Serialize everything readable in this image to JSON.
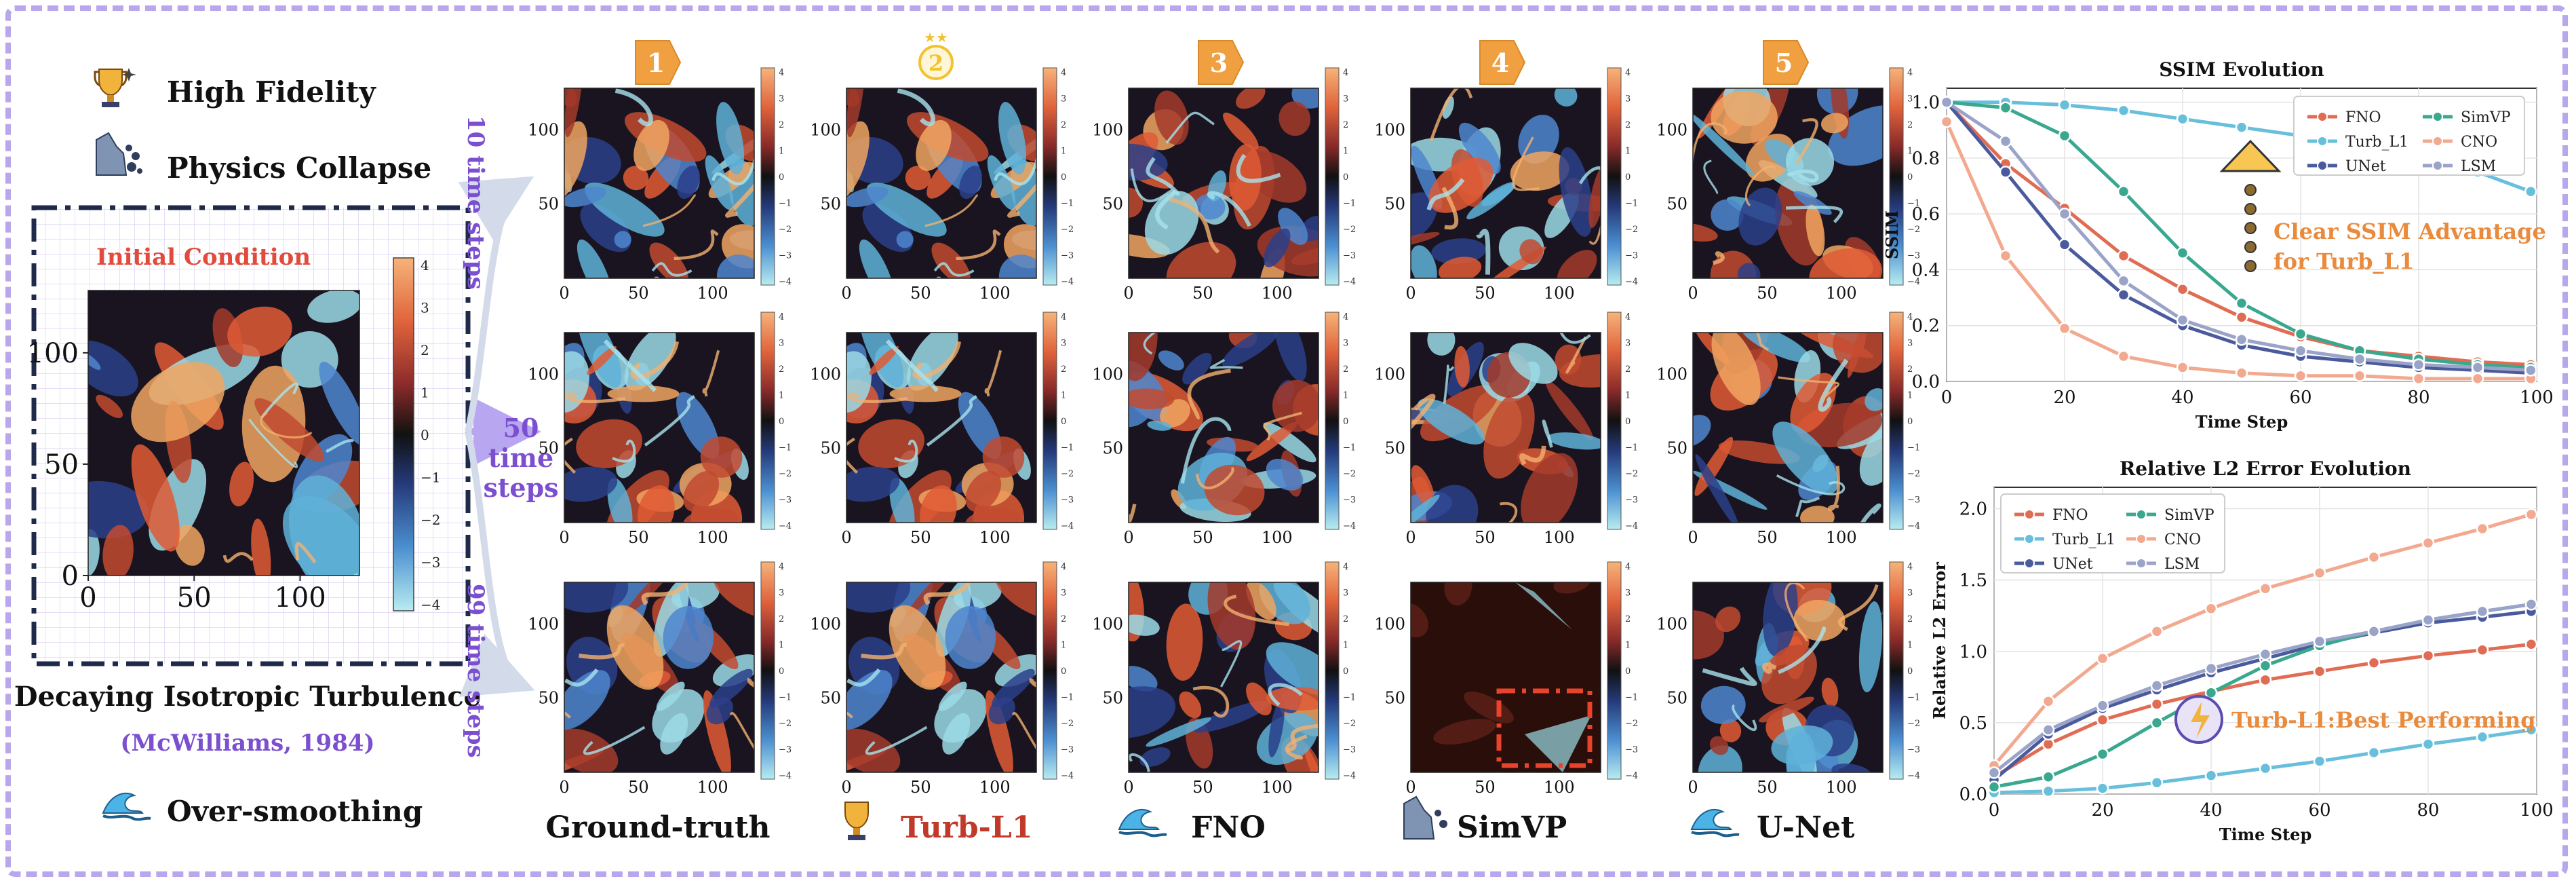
{
  "legend_left": {
    "high_fidelity": "High Fidelity",
    "physics_collapse": "Physics Collapse",
    "over_smoothing": "Over-smoothing",
    "icons": {
      "trophy": "trophy-icon",
      "rockslide": "rockslide-icon",
      "wave": "wave-icon"
    }
  },
  "initial_condition": {
    "title": "Initial Condition",
    "x_ticks": [
      "0",
      "50",
      "100"
    ],
    "y_ticks": [
      "0",
      "50",
      "100"
    ],
    "colorbar_ticks": [
      "4",
      "3",
      "2",
      "1",
      "0",
      "−1",
      "−2",
      "−3",
      "−4"
    ],
    "caption": "Decaying Isotropic Turbulence",
    "citation": "(McWilliams, 1984)"
  },
  "time_labels": {
    "t10": "10 time steps",
    "t50_line1": "50",
    "t50_line2": "time",
    "t50_line3": "steps",
    "t99": "99 time steps"
  },
  "grid": {
    "ranks": [
      "1",
      "2",
      "3",
      "4",
      "5"
    ],
    "columns": [
      "Ground-truth",
      "Turb-L1",
      "FNO",
      "SimVP",
      "U-Net"
    ],
    "x_ticks": [
      "0",
      "50",
      "100"
    ],
    "y_ticks": [
      "0",
      "50",
      "100"
    ],
    "colorbar_ticks": [
      "4",
      "3",
      "2",
      "1",
      "0",
      "−1",
      "−2",
      "−3",
      "−4"
    ]
  },
  "colors": {
    "accent_purple": "#7b4fd0",
    "rank_orange": "#f0a040",
    "turb_red": "#c0392b",
    "frame_dash": "#b9a7ee",
    "annotation_orange": "#e98a3c"
  },
  "ssim_chart": {
    "title": "SSIM Evolution",
    "annotation_line1": "Clear SSIM Advantage",
    "annotation_line2": "for Turb_L1"
  },
  "l2_chart": {
    "title": "Relative L2 Error Evolution",
    "annotation": "Turb-L1:Best Performing"
  },
  "chart_data": [
    {
      "type": "line",
      "title": "SSIM Evolution",
      "xlabel": "Time Step",
      "ylabel": "SSIM",
      "xlim": [
        0,
        100
      ],
      "ylim": [
        0,
        1.05
      ],
      "x_ticks": [
        0,
        20,
        40,
        60,
        80,
        100
      ],
      "y_ticks": [
        0.0,
        0.2,
        0.4,
        0.6,
        0.8,
        1.0
      ],
      "grid": true,
      "legend": "top-right",
      "legend_ncol": 2,
      "x": [
        0,
        10,
        20,
        30,
        40,
        50,
        60,
        70,
        80,
        90,
        99
      ],
      "series": [
        {
          "name": "FNO",
          "color": "#e06c54",
          "values": [
            1.0,
            0.78,
            0.62,
            0.45,
            0.33,
            0.23,
            0.16,
            0.11,
            0.09,
            0.07,
            0.06
          ]
        },
        {
          "name": "Turb_L1",
          "color": "#68bfdc",
          "values": [
            1.0,
            1.0,
            0.99,
            0.97,
            0.94,
            0.91,
            0.88,
            0.84,
            0.8,
            0.75,
            0.68
          ]
        },
        {
          "name": "UNet",
          "color": "#4a5a9c",
          "values": [
            1.0,
            0.75,
            0.49,
            0.31,
            0.2,
            0.13,
            0.09,
            0.07,
            0.05,
            0.04,
            0.03
          ]
        },
        {
          "name": "SimVP",
          "color": "#3aa88e",
          "values": [
            1.0,
            0.98,
            0.88,
            0.68,
            0.46,
            0.28,
            0.17,
            0.11,
            0.08,
            0.06,
            0.05
          ]
        },
        {
          "name": "CNO",
          "color": "#f2a98f",
          "values": [
            0.93,
            0.45,
            0.19,
            0.09,
            0.05,
            0.03,
            0.02,
            0.02,
            0.01,
            0.01,
            0.01
          ]
        },
        {
          "name": "LSM",
          "color": "#9aa3c8",
          "values": [
            1.0,
            0.86,
            0.6,
            0.36,
            0.22,
            0.15,
            0.11,
            0.08,
            0.06,
            0.05,
            0.04
          ]
        }
      ]
    },
    {
      "type": "line",
      "title": "Relative L2 Error Evolution",
      "xlabel": "Time Step",
      "ylabel": "Relative L2 Error",
      "xlim": [
        0,
        100
      ],
      "ylim": [
        0,
        2.15
      ],
      "x_ticks": [
        0,
        20,
        40,
        60,
        80,
        100
      ],
      "y_ticks": [
        0.0,
        0.5,
        1.0,
        1.5,
        2.0
      ],
      "grid": true,
      "legend": "top-left",
      "legend_ncol": 2,
      "x": [
        0,
        10,
        20,
        30,
        40,
        50,
        60,
        70,
        80,
        90,
        99
      ],
      "series": [
        {
          "name": "FNO",
          "color": "#e06c54",
          "values": [
            0.12,
            0.35,
            0.52,
            0.63,
            0.72,
            0.8,
            0.86,
            0.92,
            0.97,
            1.01,
            1.05
          ]
        },
        {
          "name": "Turb_L1",
          "color": "#68bfdc",
          "values": [
            0.01,
            0.02,
            0.04,
            0.08,
            0.13,
            0.18,
            0.23,
            0.29,
            0.35,
            0.4,
            0.45
          ]
        },
        {
          "name": "UNet",
          "color": "#4a5a9c",
          "values": [
            0.1,
            0.42,
            0.6,
            0.73,
            0.85,
            0.95,
            1.05,
            1.13,
            1.2,
            1.24,
            1.28
          ]
        },
        {
          "name": "SimVP",
          "color": "#3aa88e",
          "values": [
            0.05,
            0.12,
            0.28,
            0.5,
            0.71,
            0.9,
            1.04,
            1.14,
            1.22,
            1.28,
            1.33
          ]
        },
        {
          "name": "CNO",
          "color": "#f2a98f",
          "values": [
            0.2,
            0.65,
            0.95,
            1.14,
            1.3,
            1.44,
            1.55,
            1.66,
            1.76,
            1.86,
            1.96
          ]
        },
        {
          "name": "LSM",
          "color": "#9aa3c8",
          "values": [
            0.15,
            0.45,
            0.62,
            0.76,
            0.88,
            0.98,
            1.07,
            1.14,
            1.22,
            1.28,
            1.33
          ]
        }
      ]
    }
  ]
}
